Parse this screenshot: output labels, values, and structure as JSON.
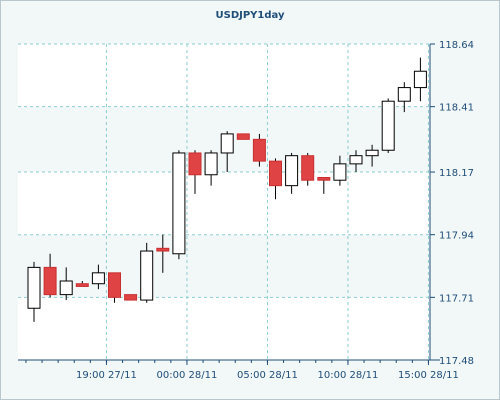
{
  "chart_data": {
    "type": "candlestick",
    "title": "USDJPY1day",
    "xlabel": "",
    "ylabel": "",
    "ylim": [
      117.48,
      118.64
    ],
    "y_ticks": [
      "117.48",
      "117.71",
      "117.94",
      "118.17",
      "118.41",
      "118.64"
    ],
    "y_tick_values": [
      117.48,
      117.71,
      117.94,
      118.17,
      118.41,
      118.64
    ],
    "x_ticks": [
      {
        "label": "19:00 27/11",
        "index": 4.5
      },
      {
        "label": "00:00 28/11",
        "index": 9.5
      },
      {
        "label": "05:00 28/11",
        "index": 14.5
      },
      {
        "label": "10:00 28/11",
        "index": 19.5
      },
      {
        "label": "15:00 28/11",
        "index": 24.5
      }
    ],
    "grid": true,
    "series": [
      {
        "candles": [
          {
            "open": 117.67,
            "high": 117.84,
            "low": 117.62,
            "close": 117.82
          },
          {
            "open": 117.82,
            "high": 117.87,
            "low": 117.71,
            "close": 117.72
          },
          {
            "open": 117.72,
            "high": 117.82,
            "low": 117.7,
            "close": 117.77
          },
          {
            "open": 117.76,
            "high": 117.77,
            "low": 117.75,
            "close": 117.75
          },
          {
            "open": 117.76,
            "high": 117.83,
            "low": 117.74,
            "close": 117.8
          },
          {
            "open": 117.8,
            "high": 117.8,
            "low": 117.69,
            "close": 117.71
          },
          {
            "open": 117.72,
            "high": 117.72,
            "low": 117.7,
            "close": 117.7
          },
          {
            "open": 117.7,
            "high": 117.91,
            "low": 117.69,
            "close": 117.88
          },
          {
            "open": 117.89,
            "high": 117.94,
            "low": 117.8,
            "close": 117.88
          },
          {
            "open": 117.87,
            "high": 118.25,
            "low": 117.85,
            "close": 118.24
          },
          {
            "open": 118.24,
            "high": 118.25,
            "low": 118.09,
            "close": 118.16
          },
          {
            "open": 118.16,
            "high": 118.25,
            "low": 118.12,
            "close": 118.24
          },
          {
            "open": 118.24,
            "high": 118.32,
            "low": 118.17,
            "close": 118.31
          },
          {
            "open": 118.31,
            "high": 118.31,
            "low": 118.29,
            "close": 118.29
          },
          {
            "open": 118.29,
            "high": 118.31,
            "low": 118.19,
            "close": 118.21
          },
          {
            "open": 118.21,
            "high": 118.22,
            "low": 118.07,
            "close": 118.12
          },
          {
            "open": 118.12,
            "high": 118.24,
            "low": 118.09,
            "close": 118.23
          },
          {
            "open": 118.23,
            "high": 118.24,
            "low": 118.12,
            "close": 118.14
          },
          {
            "open": 118.15,
            "high": 118.15,
            "low": 118.09,
            "close": 118.14
          },
          {
            "open": 118.14,
            "high": 118.23,
            "low": 118.12,
            "close": 118.2
          },
          {
            "open": 118.2,
            "high": 118.25,
            "low": 118.17,
            "close": 118.23
          },
          {
            "open": 118.23,
            "high": 118.27,
            "low": 118.19,
            "close": 118.25
          },
          {
            "open": 118.25,
            "high": 118.44,
            "low": 118.24,
            "close": 118.43
          },
          {
            "open": 118.43,
            "high": 118.5,
            "low": 118.39,
            "close": 118.48
          },
          {
            "open": 118.48,
            "high": 118.59,
            "low": 118.43,
            "close": 118.54
          }
        ]
      }
    ],
    "colors": {
      "bull_fill": "#ffffff",
      "bear_fill": "#e04343",
      "bear_border": "#c83030",
      "bull_border": "#000000",
      "wick": "#000000",
      "grid": "#8fcfcf",
      "axis": "#1f4e79",
      "plot_bg": "#ffffff",
      "band_bg": "#f2f7f8"
    }
  }
}
